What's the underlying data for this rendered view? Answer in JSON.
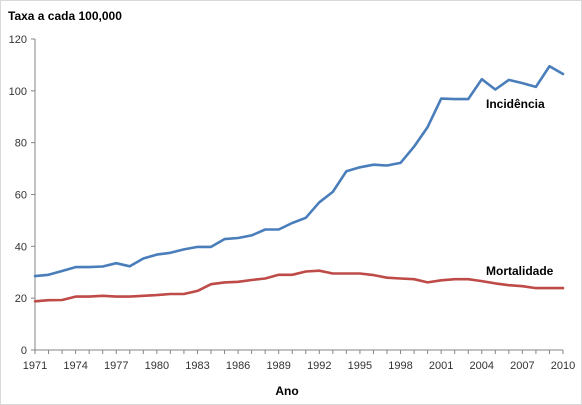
{
  "chart_data": {
    "type": "line",
    "title": "",
    "ylabel": "Taxa a cada 100,000",
    "xlabel": "Ano",
    "xlim": [
      1971,
      2010
    ],
    "ylim": [
      0,
      120
    ],
    "y_ticks": [
      0,
      20,
      40,
      60,
      80,
      100,
      120
    ],
    "x_tick_labels": [
      "1971",
      "1974",
      "1977",
      "1980",
      "1983",
      "1986",
      "1989",
      "1992",
      "1995",
      "1998",
      "2001",
      "2004",
      "2007",
      "2010"
    ],
    "grid": false,
    "x": [
      1971,
      1972,
      1973,
      1974,
      1975,
      1976,
      1977,
      1978,
      1979,
      1980,
      1981,
      1982,
      1983,
      1984,
      1985,
      1986,
      1987,
      1988,
      1989,
      1990,
      1991,
      1992,
      1993,
      1994,
      1995,
      1996,
      1997,
      1998,
      1999,
      2000,
      2001,
      2002,
      2003,
      2004,
      2005,
      2006,
      2007,
      2008,
      2009,
      2010
    ],
    "series": [
      {
        "name": "Incidência",
        "color": "#4a7ebb",
        "values": [
          28.5,
          29,
          30.5,
          32,
          32,
          32.2,
          33.5,
          32.3,
          35.3,
          36.8,
          37.5,
          38.8,
          39.8,
          39.8,
          42.8,
          43.2,
          44.2,
          46.5,
          46.5,
          49,
          51,
          57,
          61,
          69,
          70.5,
          71.5,
          71.2,
          72.2,
          78.5,
          86,
          97,
          96.8,
          96.8,
          104.5,
          100.5,
          104.2,
          103,
          101.5,
          109.5,
          106.5
        ]
      },
      {
        "name": "Mortalidade",
        "color": "#be4b48",
        "values": [
          18.8,
          19.2,
          19.3,
          20.6,
          20.6,
          20.9,
          20.6,
          20.6,
          20.9,
          21.2,
          21.6,
          21.6,
          22.8,
          25.4,
          26.1,
          26.3,
          27,
          27.6,
          29,
          29,
          30.3,
          30.6,
          29.5,
          29.5,
          29.5,
          28.9,
          27.9,
          27.6,
          27.3,
          26.1,
          26.9,
          27.3,
          27.3,
          26.6,
          25.7,
          25,
          24.6,
          23.9,
          23.9,
          23.9
        ]
      }
    ]
  }
}
